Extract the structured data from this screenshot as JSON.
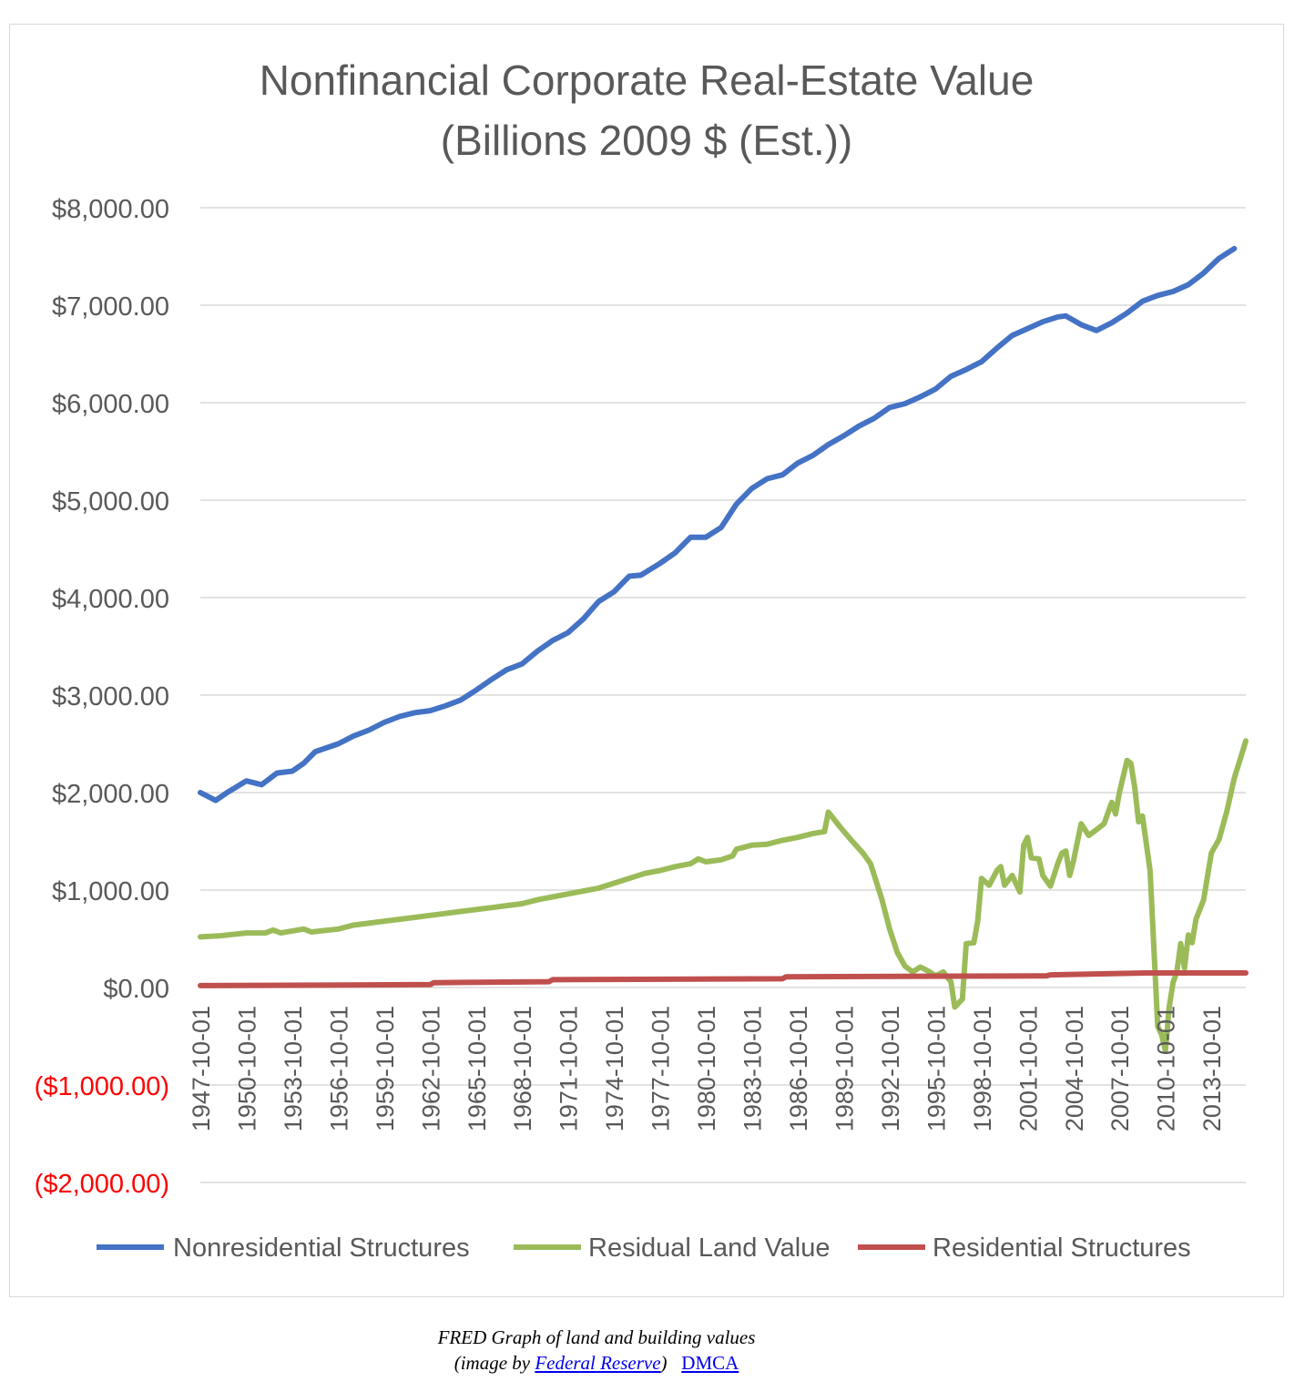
{
  "chart_data": {
    "type": "line",
    "title": "Nonfinancial Corporate Real-Estate Value",
    "subtitle": "(Billions 2009 $ (Est.))",
    "xlabel": "",
    "ylabel": "",
    "ylim": [
      -2000,
      8000
    ],
    "grid": true,
    "legend": "bottom",
    "negative_tick_color": "#ff0000",
    "y_ticks": [
      {
        "value": 8000,
        "label": "$8,000.00"
      },
      {
        "value": 7000,
        "label": "$7,000.00"
      },
      {
        "value": 6000,
        "label": "$6,000.00"
      },
      {
        "value": 5000,
        "label": "$5,000.00"
      },
      {
        "value": 4000,
        "label": "$4,000.00"
      },
      {
        "value": 3000,
        "label": "$3,000.00"
      },
      {
        "value": 2000,
        "label": "$2,000.00"
      },
      {
        "value": 1000,
        "label": "$1,000.00"
      },
      {
        "value": 0,
        "label": "$0.00"
      },
      {
        "value": -1000,
        "label": "($1,000.00)"
      },
      {
        "value": -2000,
        "label": "($2,000.00)"
      }
    ],
    "x_ticks": [
      "1947-10-01",
      "1950-10-01",
      "1953-10-01",
      "1956-10-01",
      "1959-10-01",
      "1962-10-01",
      "1965-10-01",
      "1968-10-01",
      "1971-10-01",
      "1974-10-01",
      "1977-10-01",
      "1980-10-01",
      "1983-10-01",
      "1986-10-01",
      "1989-10-01",
      "1992-10-01",
      "1995-10-01",
      "1998-10-01",
      "2001-10-01",
      "2004-10-01",
      "2007-10-01",
      "2010-10-01",
      "2013-10-01"
    ],
    "series": [
      {
        "name": "Nonresidential Structures",
        "color": "#4472c4",
        "points": [
          [
            1947.75,
            2000
          ],
          [
            1948.75,
            1920
          ],
          [
            1949.5,
            2000
          ],
          [
            1950.75,
            2120
          ],
          [
            1951.75,
            2080
          ],
          [
            1952.75,
            2200
          ],
          [
            1953.75,
            2220
          ],
          [
            1954.5,
            2300
          ],
          [
            1955.25,
            2420
          ],
          [
            1956.75,
            2500
          ],
          [
            1957.75,
            2580
          ],
          [
            1958.75,
            2640
          ],
          [
            1959.75,
            2720
          ],
          [
            1960.75,
            2780
          ],
          [
            1961.75,
            2820
          ],
          [
            1962.75,
            2840
          ],
          [
            1963.75,
            2890
          ],
          [
            1964.75,
            2950
          ],
          [
            1965.75,
            3050
          ],
          [
            1966.75,
            3160
          ],
          [
            1967.75,
            3260
          ],
          [
            1968.75,
            3320
          ],
          [
            1969.75,
            3450
          ],
          [
            1970.75,
            3560
          ],
          [
            1971.75,
            3640
          ],
          [
            1972.75,
            3780
          ],
          [
            1973.75,
            3960
          ],
          [
            1974.75,
            4060
          ],
          [
            1975.75,
            4220
          ],
          [
            1976.5,
            4230
          ],
          [
            1977.75,
            4350
          ],
          [
            1978.75,
            4460
          ],
          [
            1979.75,
            4620
          ],
          [
            1980.75,
            4620
          ],
          [
            1981.75,
            4720
          ],
          [
            1982.75,
            4960
          ],
          [
            1983.75,
            5120
          ],
          [
            1984.75,
            5220
          ],
          [
            1985.75,
            5260
          ],
          [
            1986.75,
            5380
          ],
          [
            1987.75,
            5460
          ],
          [
            1988.75,
            5570
          ],
          [
            1989.75,
            5660
          ],
          [
            1990.75,
            5760
          ],
          [
            1991.75,
            5840
          ],
          [
            1992.75,
            5950
          ],
          [
            1993.75,
            5990
          ],
          [
            1994.75,
            6060
          ],
          [
            1995.75,
            6140
          ],
          [
            1996.75,
            6270
          ],
          [
            1997.75,
            6340
          ],
          [
            1998.75,
            6420
          ],
          [
            1999.75,
            6560
          ],
          [
            2000.75,
            6690
          ],
          [
            2001.75,
            6760
          ],
          [
            2002.75,
            6830
          ],
          [
            2003.75,
            6880
          ],
          [
            2004.25,
            6890
          ],
          [
            2005.25,
            6800
          ],
          [
            2006.25,
            6740
          ],
          [
            2007.25,
            6820
          ],
          [
            2008.25,
            6920
          ],
          [
            2009.25,
            7040
          ],
          [
            2010.25,
            7100
          ],
          [
            2011.25,
            7140
          ],
          [
            2012.25,
            7210
          ],
          [
            2013.25,
            7330
          ],
          [
            2014.25,
            7480
          ],
          [
            2015.25,
            7580
          ]
        ]
      },
      {
        "name": "Residual Land Value",
        "color": "#9bbb59",
        "points": [
          [
            1947.75,
            520
          ],
          [
            1949.0,
            530
          ],
          [
            1950.75,
            560
          ],
          [
            1952.0,
            560
          ],
          [
            1952.5,
            590
          ],
          [
            1953.0,
            560
          ],
          [
            1953.75,
            580
          ],
          [
            1954.5,
            600
          ],
          [
            1955.0,
            570
          ],
          [
            1956.75,
            600
          ],
          [
            1957.75,
            640
          ],
          [
            1958.75,
            660
          ],
          [
            1959.75,
            680
          ],
          [
            1960.75,
            700
          ],
          [
            1961.75,
            720
          ],
          [
            1962.75,
            740
          ],
          [
            1963.75,
            760
          ],
          [
            1964.75,
            780
          ],
          [
            1965.75,
            800
          ],
          [
            1966.75,
            820
          ],
          [
            1967.75,
            840
          ],
          [
            1968.75,
            860
          ],
          [
            1969.75,
            900
          ],
          [
            1970.75,
            930
          ],
          [
            1971.75,
            960
          ],
          [
            1972.75,
            990
          ],
          [
            1973.75,
            1020
          ],
          [
            1974.75,
            1070
          ],
          [
            1975.75,
            1120
          ],
          [
            1976.75,
            1170
          ],
          [
            1977.75,
            1200
          ],
          [
            1978.75,
            1240
          ],
          [
            1979.75,
            1270
          ],
          [
            1980.25,
            1320
          ],
          [
            1980.75,
            1290
          ],
          [
            1981.75,
            1310
          ],
          [
            1982.5,
            1350
          ],
          [
            1982.75,
            1420
          ],
          [
            1983.75,
            1460
          ],
          [
            1984.75,
            1470
          ],
          [
            1985.75,
            1510
          ],
          [
            1986.75,
            1540
          ],
          [
            1987.75,
            1580
          ],
          [
            1988.5,
            1600
          ],
          [
            1988.75,
            1800
          ],
          [
            1989.5,
            1650
          ],
          [
            1990.25,
            1510
          ],
          [
            1991.0,
            1380
          ],
          [
            1991.5,
            1270
          ],
          [
            1991.75,
            1150
          ],
          [
            1992.25,
            900
          ],
          [
            1992.75,
            600
          ],
          [
            1993.25,
            360
          ],
          [
            1993.75,
            220
          ],
          [
            1994.25,
            160
          ],
          [
            1994.75,
            210
          ],
          [
            1995.25,
            170
          ],
          [
            1995.75,
            120
          ],
          [
            1996.25,
            160
          ],
          [
            1996.75,
            60
          ],
          [
            1997.0,
            -200
          ],
          [
            1997.5,
            -120
          ],
          [
            1997.75,
            450
          ],
          [
            1998.25,
            460
          ],
          [
            1998.5,
            680
          ],
          [
            1998.75,
            1120
          ],
          [
            1999.25,
            1050
          ],
          [
            1999.75,
            1200
          ],
          [
            2000.0,
            1240
          ],
          [
            2000.25,
            1050
          ],
          [
            2000.75,
            1150
          ],
          [
            2001.25,
            980
          ],
          [
            2001.5,
            1460
          ],
          [
            2001.75,
            1540
          ],
          [
            2002.0,
            1330
          ],
          [
            2002.5,
            1320
          ],
          [
            2002.75,
            1150
          ],
          [
            2003.25,
            1040
          ],
          [
            2003.75,
            1280
          ],
          [
            2004.0,
            1380
          ],
          [
            2004.25,
            1400
          ],
          [
            2004.5,
            1150
          ],
          [
            2004.75,
            1300
          ],
          [
            2005.25,
            1680
          ],
          [
            2005.75,
            1560
          ],
          [
            2006.25,
            1620
          ],
          [
            2006.75,
            1680
          ],
          [
            2007.25,
            1900
          ],
          [
            2007.5,
            1780
          ],
          [
            2007.75,
            2000
          ],
          [
            2008.25,
            2330
          ],
          [
            2008.5,
            2300
          ],
          [
            2008.75,
            2050
          ],
          [
            2009.0,
            1700
          ],
          [
            2009.25,
            1760
          ],
          [
            2009.75,
            1200
          ],
          [
            2010.0,
            400
          ],
          [
            2010.25,
            -400
          ],
          [
            2010.5,
            -480
          ],
          [
            2010.75,
            -650
          ],
          [
            2011.0,
            -200
          ],
          [
            2011.25,
            50
          ],
          [
            2011.5,
            160
          ],
          [
            2011.75,
            450
          ],
          [
            2012.0,
            200
          ],
          [
            2012.25,
            540
          ],
          [
            2012.5,
            460
          ],
          [
            2012.75,
            700
          ],
          [
            2013.25,
            900
          ],
          [
            2013.75,
            1380
          ],
          [
            2014.25,
            1520
          ],
          [
            2014.75,
            1800
          ],
          [
            2015.25,
            2150
          ],
          [
            2015.75,
            2400
          ],
          [
            2016.0,
            2530
          ]
        ]
      },
      {
        "name": "Residential Structures",
        "color": "#c0504d",
        "points": [
          [
            1947.75,
            20
          ],
          [
            1962.75,
            30
          ],
          [
            1963.0,
            50
          ],
          [
            1970.5,
            60
          ],
          [
            1970.75,
            80
          ],
          [
            1985.75,
            90
          ],
          [
            1986.0,
            110
          ],
          [
            2003.0,
            120
          ],
          [
            2003.25,
            130
          ],
          [
            2009.5,
            150
          ],
          [
            2016.0,
            150
          ]
        ]
      }
    ]
  },
  "caption": {
    "line1": "FRED Graph of land and building values",
    "line2_prefix": "(image by ",
    "line2_link": "Federal Reserve",
    "line2_suffix": ")",
    "dmca": "DMCA"
  }
}
